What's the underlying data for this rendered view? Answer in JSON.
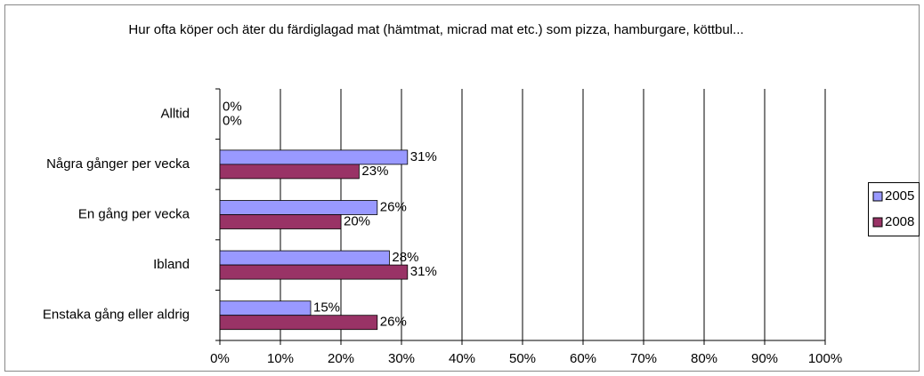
{
  "chart_data": {
    "type": "bar",
    "orientation": "horizontal",
    "title": "Hur ofta köper och äter du färdiglagad mat (hämtmat, micrad mat etc.) som pizza, hamburgare, köttbul...",
    "categories": [
      "Alltid",
      "Några gånger per vecka",
      "En gång per vecka",
      "Ibland",
      "Enstaka gång eller aldrig"
    ],
    "series": [
      {
        "name": "2005",
        "color": "#9999ff",
        "values": [
          0,
          31,
          26,
          28,
          15
        ],
        "value_labels": [
          "0%",
          "31%",
          "26%",
          "28%",
          "15%"
        ]
      },
      {
        "name": "2008",
        "color": "#993366",
        "values": [
          0,
          23,
          20,
          31,
          26
        ],
        "value_labels": [
          "0%",
          "23%",
          "20%",
          "31%",
          "26%"
        ]
      }
    ],
    "xlim": [
      0,
      100
    ],
    "xticks": [
      {
        "value": 0,
        "label": "0%"
      },
      {
        "value": 10,
        "label": "10%"
      },
      {
        "value": 20,
        "label": "20%"
      },
      {
        "value": 30,
        "label": "30%"
      },
      {
        "value": 40,
        "label": "40%"
      },
      {
        "value": 50,
        "label": "50%"
      },
      {
        "value": 60,
        "label": "60%"
      },
      {
        "value": 70,
        "label": "70%"
      },
      {
        "value": 80,
        "label": "80%"
      },
      {
        "value": 90,
        "label": "90%"
      },
      {
        "value": 100,
        "label": "100%"
      }
    ],
    "grid": true,
    "legend": "right"
  }
}
